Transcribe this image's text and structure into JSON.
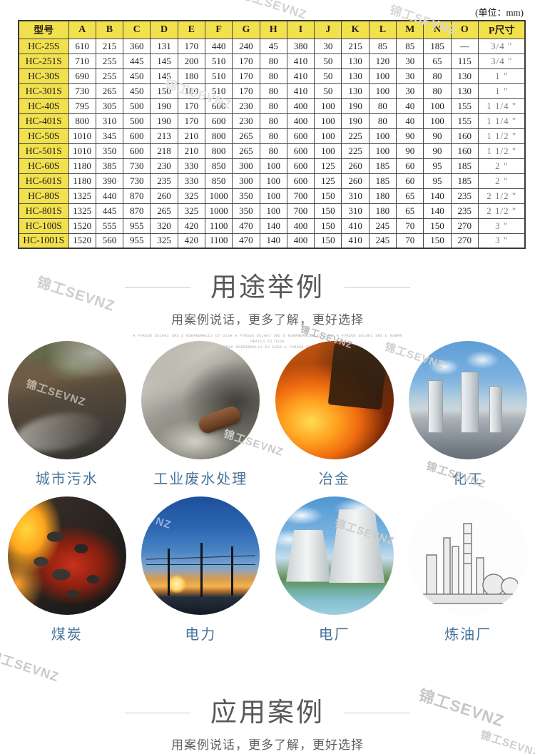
{
  "unit_label": "(单位：mm)",
  "table": {
    "headers": [
      "型号",
      "A",
      "B",
      "C",
      "D",
      "E",
      "F",
      "G",
      "H",
      "I",
      "J",
      "K",
      "L",
      "M",
      "N",
      "O",
      "P尺寸"
    ],
    "rows": [
      {
        "model": "HC-25S",
        "values": [
          "610",
          "215",
          "360",
          "131",
          "170",
          "440",
          "240",
          "45",
          "380",
          "30",
          "215",
          "85",
          "85",
          "185",
          "—",
          "3/4 \""
        ]
      },
      {
        "model": "HC-251S",
        "values": [
          "710",
          "255",
          "445",
          "145",
          "200",
          "510",
          "170",
          "80",
          "410",
          "50",
          "130",
          "120",
          "30",
          "65",
          "115",
          "3/4 \""
        ]
      },
      {
        "model": "HC-30S",
        "values": [
          "690",
          "255",
          "450",
          "145",
          "180",
          "510",
          "170",
          "80",
          "410",
          "50",
          "130",
          "100",
          "30",
          "80",
          "130",
          "1 \""
        ]
      },
      {
        "model": "HC-301S",
        "values": [
          "730",
          "265",
          "450",
          "150",
          "180",
          "510",
          "170",
          "80",
          "410",
          "50",
          "130",
          "100",
          "30",
          "80",
          "130",
          "1 \""
        ]
      },
      {
        "model": "HC-40S",
        "values": [
          "795",
          "305",
          "500",
          "190",
          "170",
          "600",
          "230",
          "80",
          "400",
          "100",
          "190",
          "80",
          "40",
          "100",
          "155",
          "1 1/4 \""
        ]
      },
      {
        "model": "HC-401S",
        "values": [
          "800",
          "310",
          "500",
          "190",
          "170",
          "600",
          "230",
          "80",
          "400",
          "100",
          "190",
          "80",
          "40",
          "100",
          "155",
          "1 1/4 \""
        ]
      },
      {
        "model": "HC-50S",
        "values": [
          "1010",
          "345",
          "600",
          "213",
          "210",
          "800",
          "265",
          "80",
          "600",
          "100",
          "225",
          "100",
          "90",
          "90",
          "160",
          "1 1/2 \""
        ]
      },
      {
        "model": "HC-501S",
        "values": [
          "1010",
          "350",
          "600",
          "218",
          "210",
          "800",
          "265",
          "80",
          "600",
          "100",
          "225",
          "100",
          "90",
          "90",
          "160",
          "1 1/2 \""
        ]
      },
      {
        "model": "HC-60S",
        "values": [
          "1180",
          "385",
          "730",
          "230",
          "330",
          "850",
          "300",
          "100",
          "600",
          "125",
          "260",
          "185",
          "60",
          "95",
          "185",
          "2 \""
        ]
      },
      {
        "model": "HC-601S",
        "values": [
          "1180",
          "390",
          "730",
          "235",
          "330",
          "850",
          "300",
          "100",
          "600",
          "125",
          "260",
          "185",
          "60",
          "95",
          "185",
          "2 \""
        ]
      },
      {
        "model": "HC-80S",
        "values": [
          "1325",
          "440",
          "870",
          "260",
          "325",
          "1000",
          "350",
          "100",
          "700",
          "150",
          "310",
          "180",
          "65",
          "140",
          "235",
          "2 1/2 \""
        ]
      },
      {
        "model": "HC-801S",
        "values": [
          "1325",
          "445",
          "870",
          "265",
          "325",
          "1000",
          "350",
          "100",
          "700",
          "150",
          "310",
          "180",
          "65",
          "140",
          "235",
          "2 1/2 \""
        ]
      },
      {
        "model": "HC-100S",
        "values": [
          "1520",
          "555",
          "955",
          "320",
          "420",
          "1100",
          "470",
          "140",
          "400",
          "150",
          "410",
          "245",
          "70",
          "150",
          "270",
          "3 \""
        ]
      },
      {
        "model": "HC-1001S",
        "values": [
          "1520",
          "560",
          "955",
          "325",
          "420",
          "1100",
          "470",
          "140",
          "400",
          "150",
          "410",
          "245",
          "70",
          "150",
          "270",
          "3 \""
        ]
      }
    ]
  },
  "sections": {
    "usage": {
      "title": "用途举例",
      "subtitle": "用案例说话，更多了解，更好选择",
      "fineprint": [
        "A FVRSUE DSLAKI SRS D NSERNDRALLS  DJ  DJSA A FVRSUE DSLAKI SRS D NSERNDRALLS  DJ  DJSA  A FVRSUE DSLAKI SRS D NSERN",
        "DRALLS  DJ  DJSA",
        "A FVRSUE DSLAKI SRLD NSERNDRALLS  DJ  DJSA A FVRSUE DSLAKI SRS D NSERN"
      ]
    },
    "cases": {
      "title": "应用案例",
      "subtitle": "用案例说话，更多了解，更好选择"
    }
  },
  "usage_items": [
    {
      "label": "城市污水"
    },
    {
      "label": "工业废水处理"
    },
    {
      "label": "冶金"
    },
    {
      "label": "化工"
    },
    {
      "label": "煤炭"
    },
    {
      "label": "电力"
    },
    {
      "label": "电厂"
    },
    {
      "label": "炼油厂"
    }
  ],
  "watermark": {
    "text": "锦工SEVNZ"
  },
  "colors": {
    "table_header_bg": "#f2e14e",
    "table_border": "#4a4a4a",
    "circle_label": "#47739b",
    "section_title": "#585858",
    "subtitle_color": "#5f5f5f"
  }
}
